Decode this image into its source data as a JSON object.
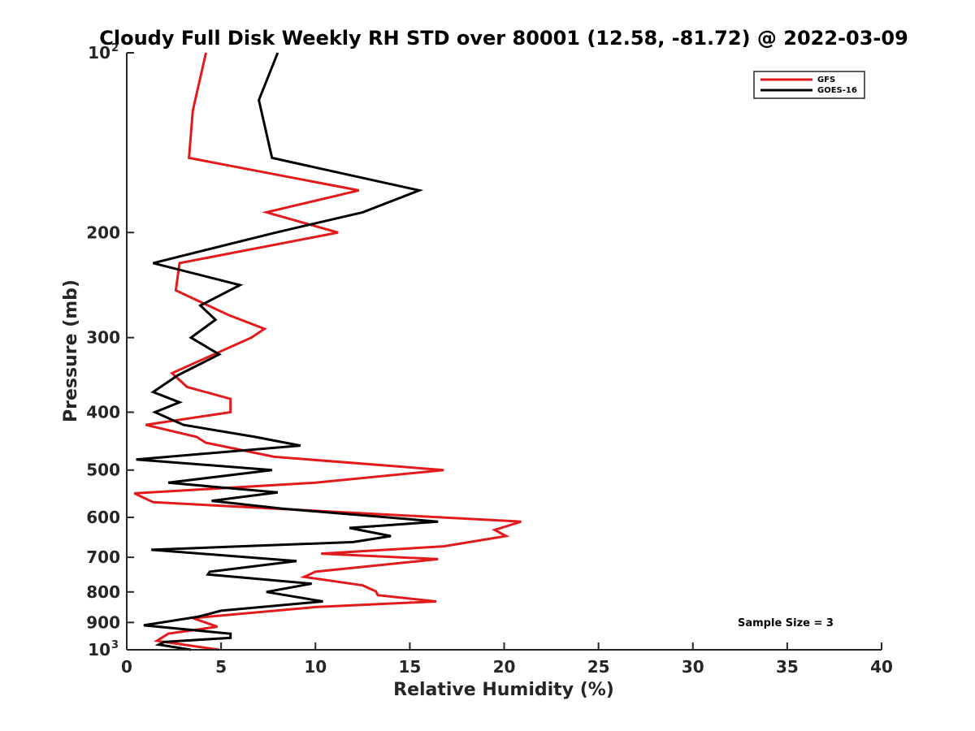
{
  "chart_data": {
    "type": "line",
    "title": "Cloudy Full Disk Weekly RH STD over 80001 (12.58, -81.72) @ 2022-03-09",
    "xlabel": "Relative Humidity (%)",
    "ylabel": "Pressure (mb)",
    "xlim": [
      0,
      40
    ],
    "ylim": [
      100,
      1000
    ],
    "y_scale": "log",
    "y_reversed": true,
    "grid": false,
    "legend_position": "top-right",
    "x_ticks": [
      0,
      5,
      10,
      15,
      20,
      25,
      30,
      35,
      40
    ],
    "y_ticks": [
      {
        "value": 100,
        "base": "10",
        "exp": "2"
      },
      {
        "value": 200,
        "label": "200"
      },
      {
        "value": 300,
        "label": "300"
      },
      {
        "value": 400,
        "label": "400"
      },
      {
        "value": 500,
        "label": "500"
      },
      {
        "value": 600,
        "label": "600"
      },
      {
        "value": 700,
        "label": "700"
      },
      {
        "value": 800,
        "label": "800"
      },
      {
        "value": 900,
        "label": "900"
      },
      {
        "value": 1000,
        "base": "10",
        "exp": "3"
      }
    ],
    "annotation": "Sample Size = 3",
    "series": [
      {
        "name": "GFS",
        "color": "#e31a1c",
        "points": [
          [
            4.2,
            100
          ],
          [
            3.5,
            125
          ],
          [
            3.3,
            150
          ],
          [
            12.3,
            170
          ],
          [
            7.4,
            185
          ],
          [
            11.2,
            200
          ],
          [
            2.8,
            225
          ],
          [
            2.6,
            250
          ],
          [
            5.4,
            275
          ],
          [
            7.3,
            290
          ],
          [
            6.6,
            300
          ],
          [
            2.4,
            344
          ],
          [
            3.2,
            363
          ],
          [
            5.5,
            380
          ],
          [
            5.5,
            400
          ],
          [
            1.0,
            420
          ],
          [
            3.7,
            440
          ],
          [
            4.2,
            450
          ],
          [
            7.8,
            475
          ],
          [
            16.8,
            500
          ],
          [
            10.0,
            525
          ],
          [
            0.4,
            547
          ],
          [
            1.4,
            566
          ],
          [
            20.9,
            610
          ],
          [
            19.5,
            630
          ],
          [
            20.1,
            645
          ],
          [
            16.8,
            671
          ],
          [
            10.3,
            690
          ],
          [
            16.5,
            705
          ],
          [
            10.0,
            740
          ],
          [
            9.4,
            755
          ],
          [
            12.5,
            780
          ],
          [
            13.2,
            798
          ],
          [
            13.3,
            810
          ],
          [
            16.4,
            830
          ],
          [
            10.0,
            848
          ],
          [
            3.5,
            885
          ],
          [
            4.8,
            915
          ],
          [
            2.2,
            940
          ],
          [
            1.6,
            966
          ],
          [
            4.9,
            1000
          ]
        ]
      },
      {
        "name": "GOES-16",
        "color": "#000000",
        "points": [
          [
            8.0,
            100
          ],
          [
            7.0,
            120
          ],
          [
            7.7,
            150
          ],
          [
            15.5,
            170
          ],
          [
            12.5,
            185
          ],
          [
            7.9,
            200
          ],
          [
            1.4,
            225
          ],
          [
            6.0,
            245
          ],
          [
            3.9,
            265
          ],
          [
            4.7,
            280
          ],
          [
            3.4,
            300
          ],
          [
            4.9,
            320
          ],
          [
            2.7,
            347
          ],
          [
            1.4,
            370
          ],
          [
            2.8,
            385
          ],
          [
            1.5,
            400
          ],
          [
            3.0,
            420
          ],
          [
            6.8,
            440
          ],
          [
            9.2,
            455
          ],
          [
            0.5,
            480
          ],
          [
            7.7,
            500
          ],
          [
            2.2,
            525
          ],
          [
            8.0,
            545
          ],
          [
            4.5,
            563
          ],
          [
            8.2,
            580
          ],
          [
            16.5,
            610
          ],
          [
            11.8,
            625
          ],
          [
            14.0,
            645
          ],
          [
            12.0,
            660
          ],
          [
            1.3,
            680
          ],
          [
            9.0,
            710
          ],
          [
            4.4,
            740
          ],
          [
            4.3,
            748
          ],
          [
            9.8,
            775
          ],
          [
            7.4,
            800
          ],
          [
            10.4,
            830
          ],
          [
            5.0,
            860
          ],
          [
            3.8,
            880
          ],
          [
            0.9,
            910
          ],
          [
            5.5,
            940
          ],
          [
            5.5,
            955
          ],
          [
            2.0,
            970
          ],
          [
            1.7,
            980
          ],
          [
            3.4,
            1000
          ]
        ]
      }
    ]
  }
}
